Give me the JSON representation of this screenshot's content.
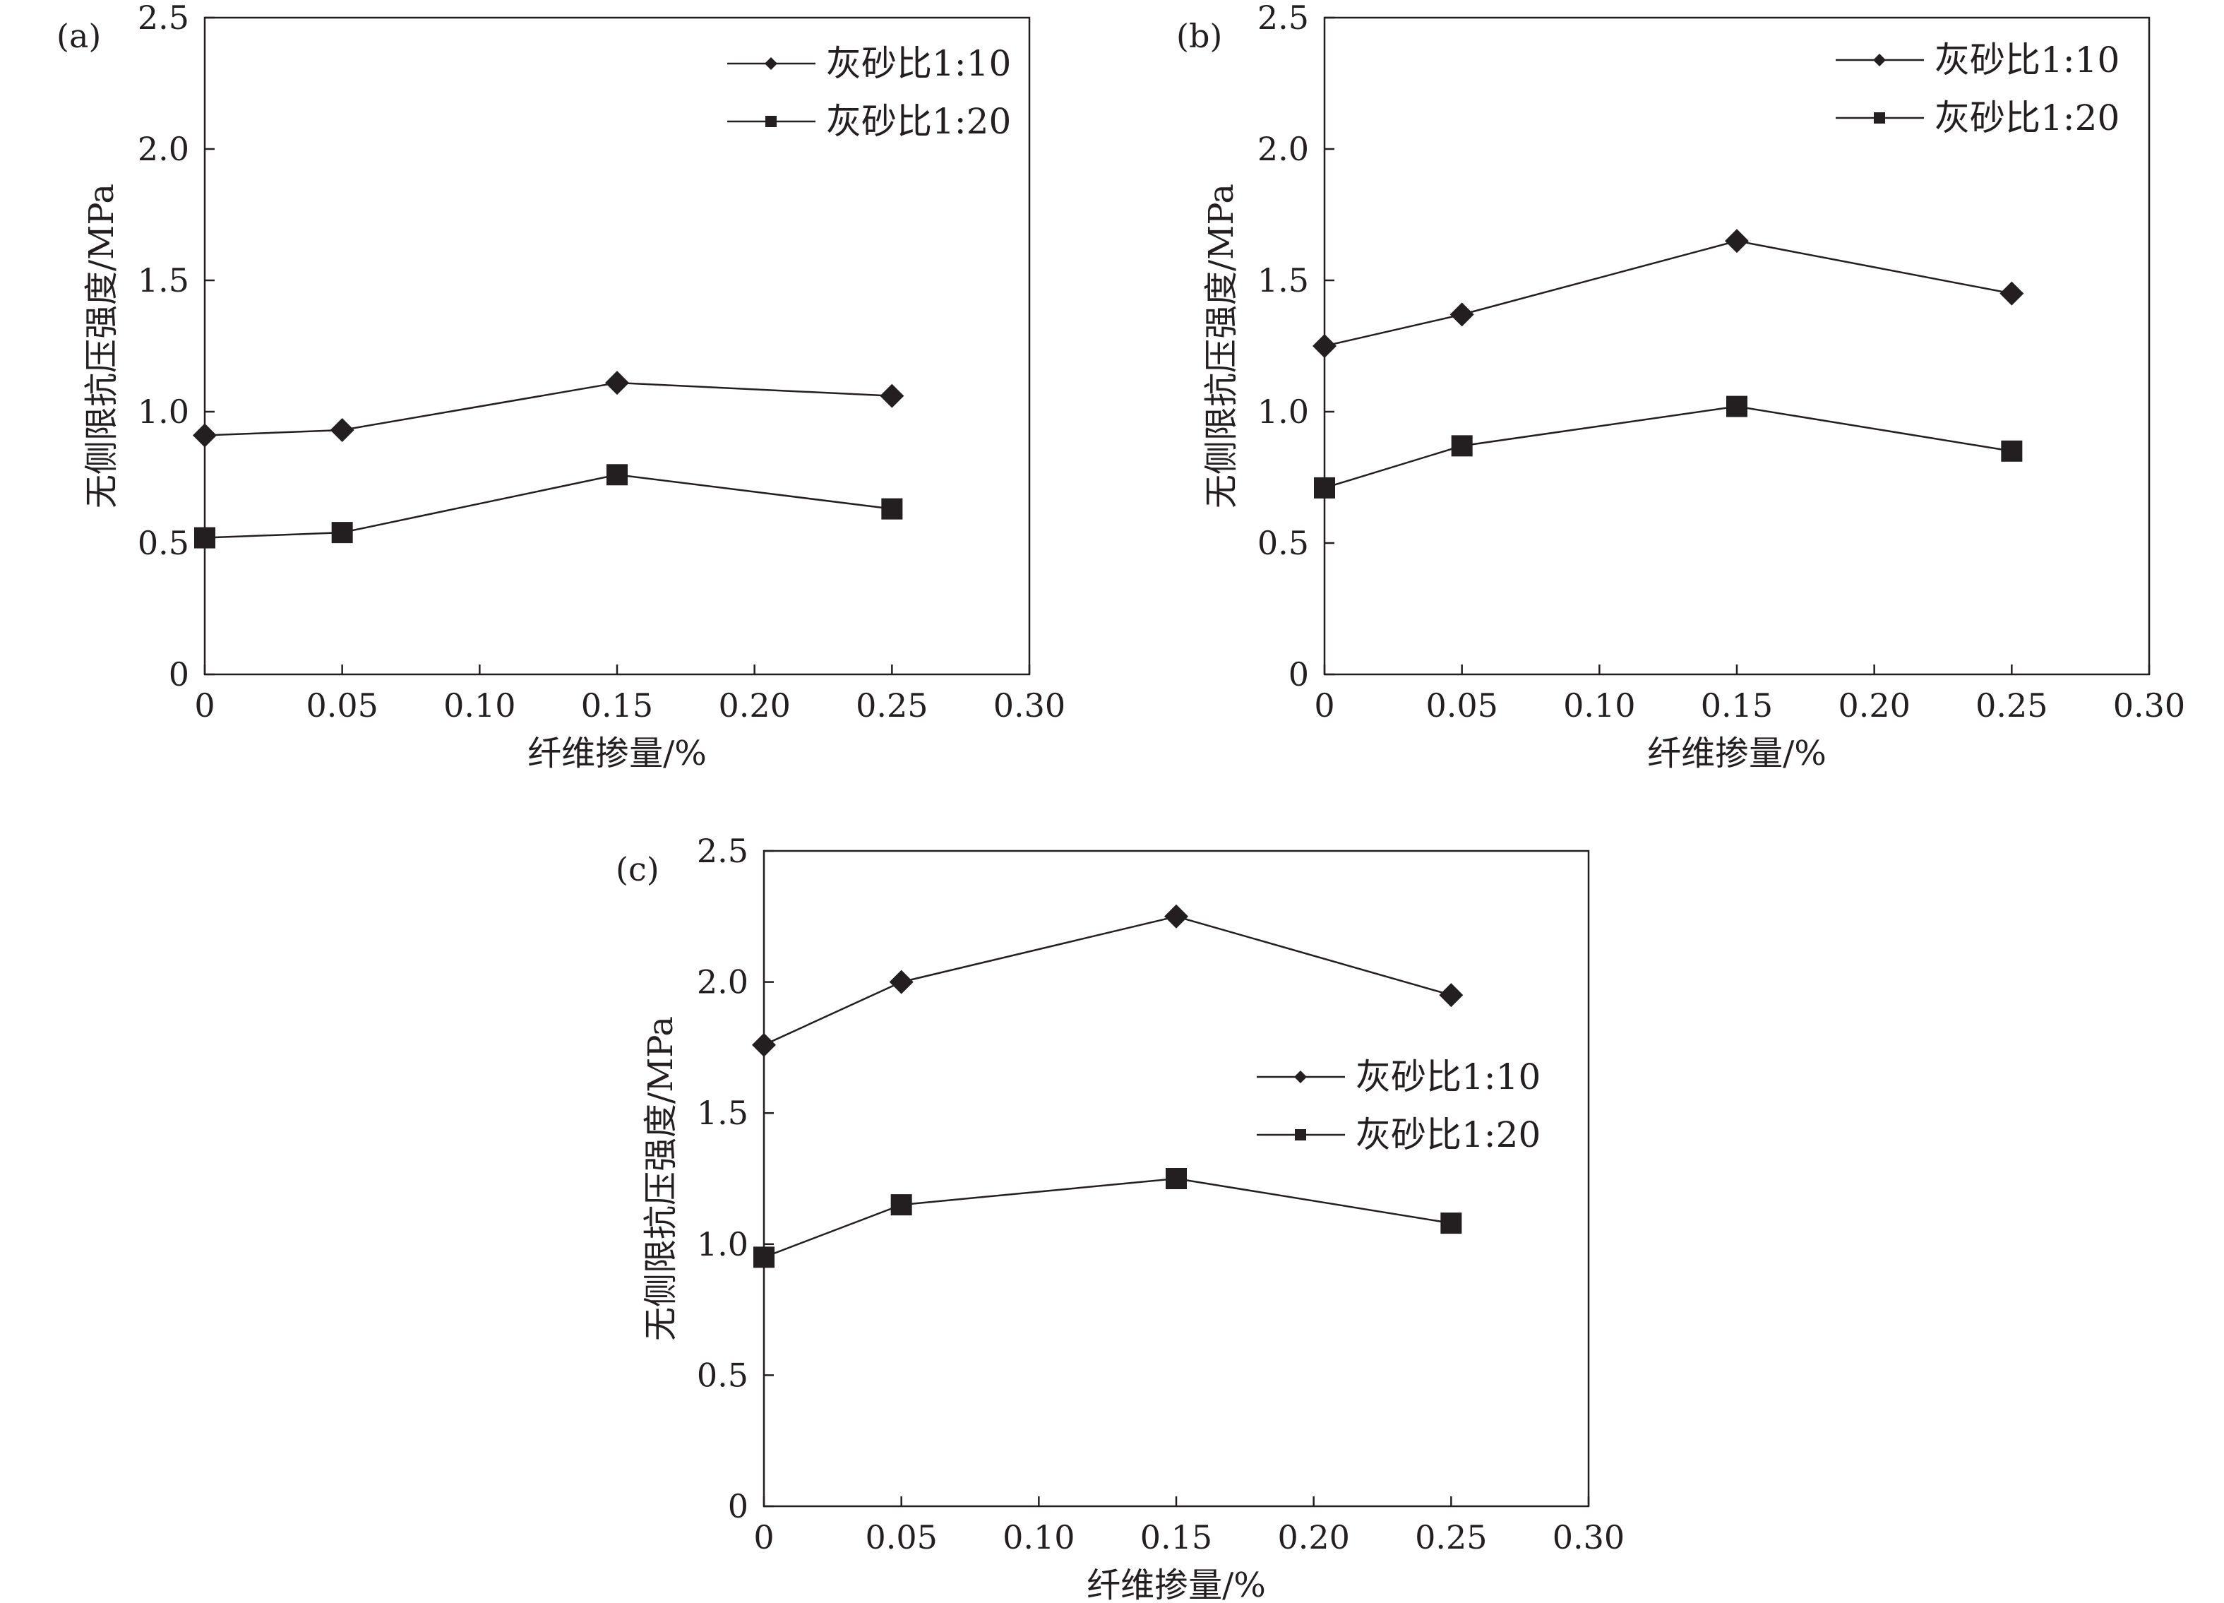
{
  "figure": {
    "colors": {
      "ink": "#231f20",
      "background": "#ffffff"
    }
  },
  "chart_data": [
    {
      "panel_label": "(a)",
      "type": "line",
      "xlabel": "纤维掺量/%",
      "ylabel": "无侧限抗压强度/MPa",
      "xlim": [
        0,
        0.3
      ],
      "ylim": [
        0,
        2.5
      ],
      "xticks": [
        "0",
        "0.05",
        "0.10",
        "0.15",
        "0.20",
        "0.25",
        "0.30"
      ],
      "yticks": [
        "0",
        "0.5",
        "1.0",
        "1.5",
        "2.0",
        "2.5"
      ],
      "x": [
        0,
        0.05,
        0.15,
        0.25
      ],
      "grid": false,
      "legend_position": "top-right",
      "series": [
        {
          "name": "灰砂比1:10",
          "marker": "diamond",
          "values": [
            0.91,
            0.93,
            1.11,
            1.06
          ]
        },
        {
          "name": "灰砂比1:20",
          "marker": "square",
          "values": [
            0.52,
            0.54,
            0.76,
            0.63
          ]
        }
      ]
    },
    {
      "panel_label": "(b)",
      "type": "line",
      "xlabel": "纤维掺量/%",
      "ylabel": "无侧限抗压强度/MPa",
      "xlim": [
        0,
        0.3
      ],
      "ylim": [
        0,
        2.5
      ],
      "xticks": [
        "0",
        "0.05",
        "0.10",
        "0.15",
        "0.20",
        "0.25",
        "0.30"
      ],
      "yticks": [
        "0",
        "0.5",
        "1.0",
        "1.5",
        "2.0",
        "2.5"
      ],
      "x": [
        0,
        0.05,
        0.15,
        0.25
      ],
      "grid": false,
      "legend_position": "top-right",
      "series": [
        {
          "name": "灰砂比1:10",
          "marker": "diamond",
          "values": [
            1.25,
            1.37,
            1.65,
            1.45
          ]
        },
        {
          "name": "灰砂比1:20",
          "marker": "square",
          "values": [
            0.71,
            0.87,
            1.02,
            0.85
          ]
        }
      ]
    },
    {
      "panel_label": "(c)",
      "type": "line",
      "xlabel": "纤维掺量/%",
      "ylabel": "无侧限抗压强度/MPa",
      "xlim": [
        0,
        0.3
      ],
      "ylim": [
        0,
        2.5
      ],
      "xticks": [
        "0",
        "0.05",
        "0.10",
        "0.15",
        "0.20",
        "0.25",
        "0.30"
      ],
      "yticks": [
        "0",
        "0.5",
        "1.0",
        "1.5",
        "2.0",
        "2.5"
      ],
      "x": [
        0,
        0.05,
        0.15,
        0.25
      ],
      "grid": false,
      "legend_position": "middle-right",
      "series": [
        {
          "name": "灰砂比1:10",
          "marker": "diamond",
          "values": [
            1.76,
            2.0,
            2.25,
            1.95
          ]
        },
        {
          "name": "灰砂比1:20",
          "marker": "square",
          "values": [
            0.95,
            1.15,
            1.25,
            1.08
          ]
        }
      ]
    }
  ]
}
